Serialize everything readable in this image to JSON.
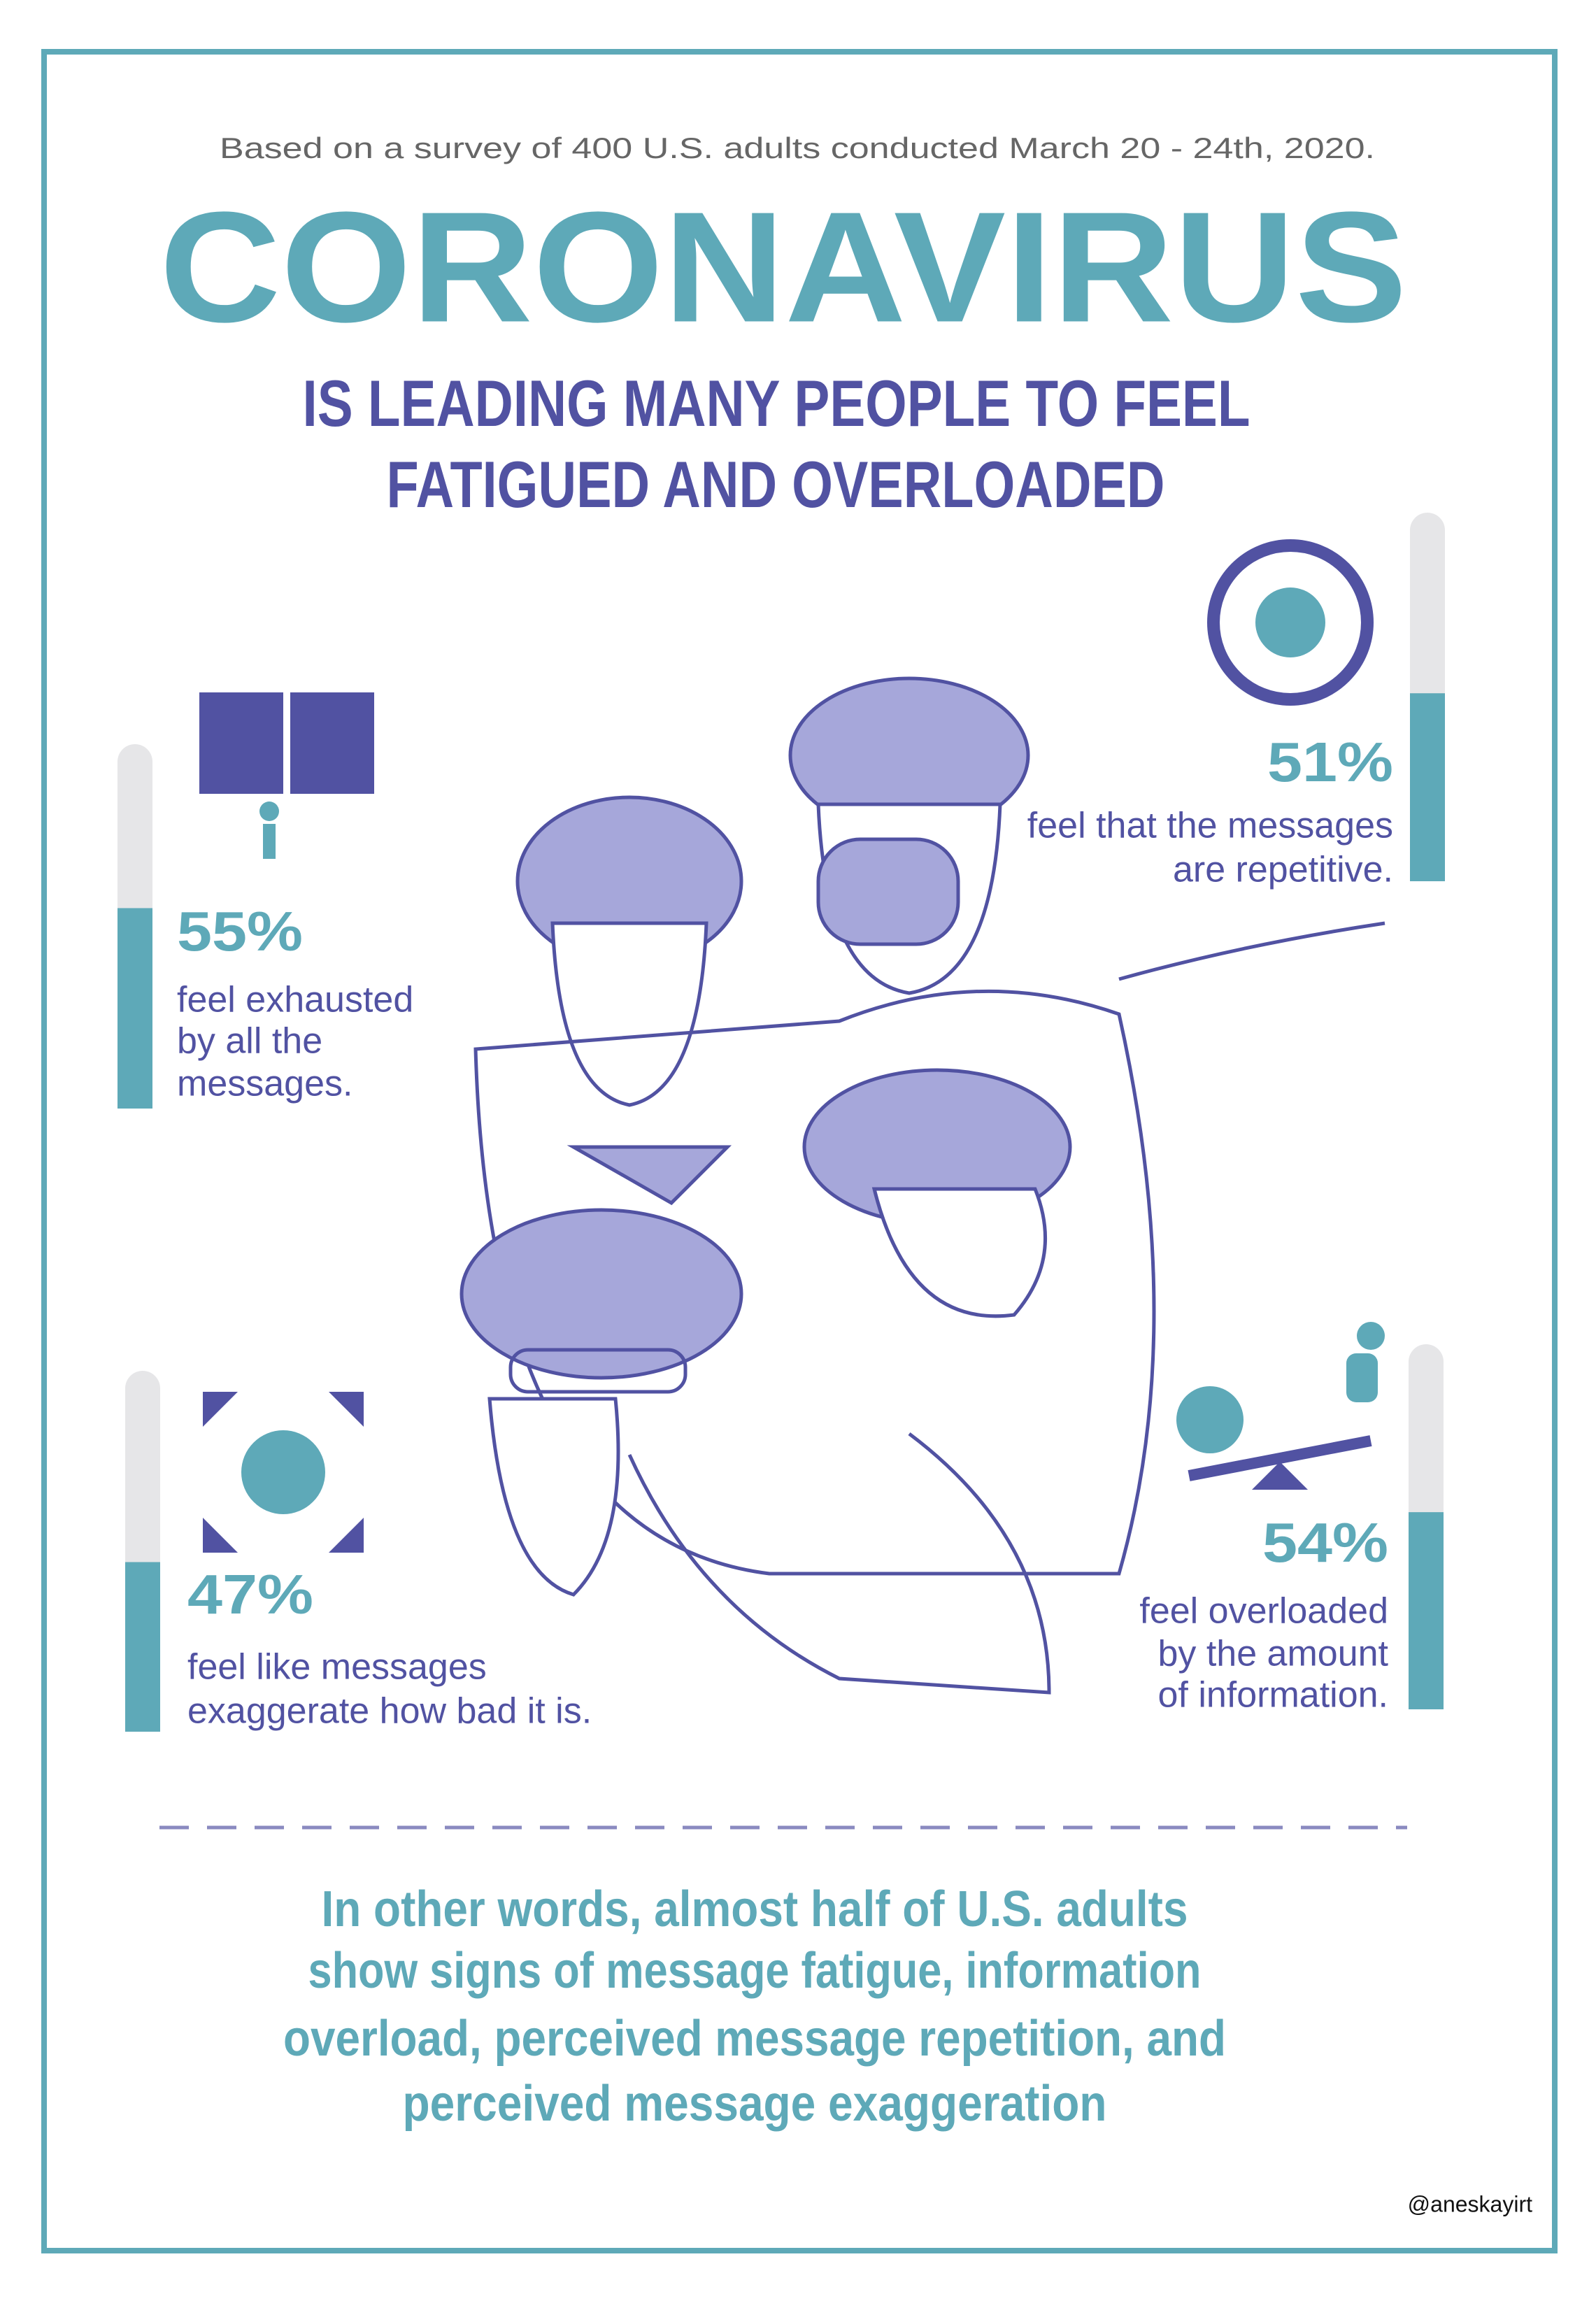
{
  "header": {
    "subtitle": "Based on a survey of 400 U.S. adults conducted March 20 - 24th, 2020.",
    "title": "CORONAVIRUS",
    "headline": [
      "IS LEADING MANY PEOPLE TO FEEL",
      "FATIGUED AND OVERLOADED"
    ]
  },
  "range": [
    0,
    100
  ],
  "stats": [
    {
      "value": 55,
      "value_label": "55%",
      "lines": [
        "feel exhausted",
        "by all the",
        "messages."
      ]
    },
    {
      "value": 51,
      "value_label": "51%",
      "lines": [
        "feel that the messages",
        "are repetitive."
      ]
    },
    {
      "value": 47,
      "value_label": "47%",
      "lines": [
        "feel like messages",
        "exaggerate how bad it is."
      ]
    },
    {
      "value": 54,
      "value_label": "54%",
      "lines": [
        "feel overloaded",
        "by the amount",
        "of information."
      ]
    }
  ],
  "conclusion": [
    "In other words, almost half of U.S. adults",
    "show signs of message fatigue, information",
    "overload, perceived message repetition, and",
    "perceived message exaggeration"
  ],
  "credit": "@aneskayirt"
}
